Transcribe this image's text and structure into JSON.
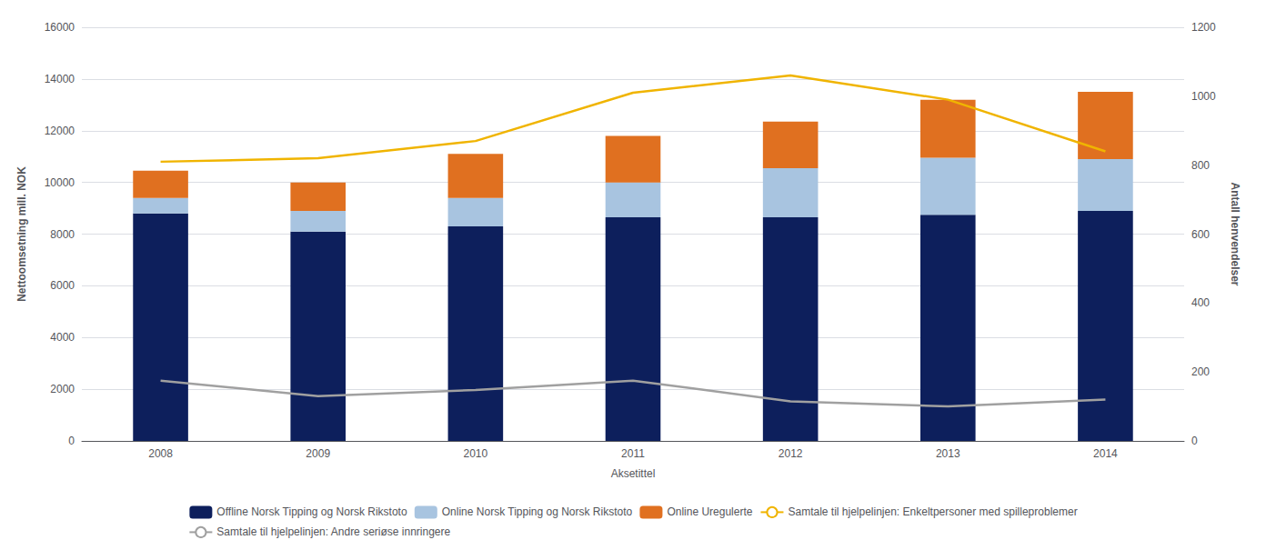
{
  "chart_data": {
    "type": "bar",
    "stacked": true,
    "categories": [
      "2008",
      "2009",
      "2010",
      "2011",
      "2012",
      "2013",
      "2014"
    ],
    "xlabel": "Aksetittel",
    "ylabel": "Nettoomsetning mill. NOK",
    "y2label": "Antall henvendelser",
    "ylim": [
      0,
      16000
    ],
    "yticks": [
      0,
      2000,
      4000,
      6000,
      8000,
      10000,
      12000,
      14000,
      16000
    ],
    "y2lim": [
      0,
      1200
    ],
    "y2ticks": [
      0,
      200,
      400,
      600,
      800,
      1000,
      1200
    ],
    "grid": true,
    "legend": "bottom",
    "series": [
      {
        "name": "Offline Norsk Tipping og Norsk Rikstoto",
        "type": "bar",
        "color": "#0d1f5c",
        "values": [
          8800,
          8100,
          8300,
          8650,
          8650,
          8750,
          8900
        ]
      },
      {
        "name": "Online Norsk Tipping og Norsk Rikstoto",
        "type": "bar",
        "color": "#a8c4e0",
        "values": [
          600,
          800,
          1100,
          1350,
          1900,
          2200,
          2000
        ]
      },
      {
        "name": "Online Uregulerte",
        "type": "bar",
        "color": "#e07020",
        "values": [
          1050,
          1100,
          1700,
          1800,
          1800,
          2250,
          2600
        ]
      },
      {
        "name": "Samtale til hjelpelinjen: Enkeltpersoner med spilleproblemer",
        "type": "line",
        "axis": "y2",
        "color": "#f0b400",
        "values": [
          810,
          820,
          870,
          1010,
          1060,
          990,
          840
        ]
      },
      {
        "name": "Samtale til hjelpelinjen: Andre seriøse innringere",
        "type": "line",
        "axis": "y2",
        "color": "#a0a0a0",
        "values": [
          175,
          130,
          148,
          175,
          115,
          100,
          120
        ]
      }
    ]
  }
}
